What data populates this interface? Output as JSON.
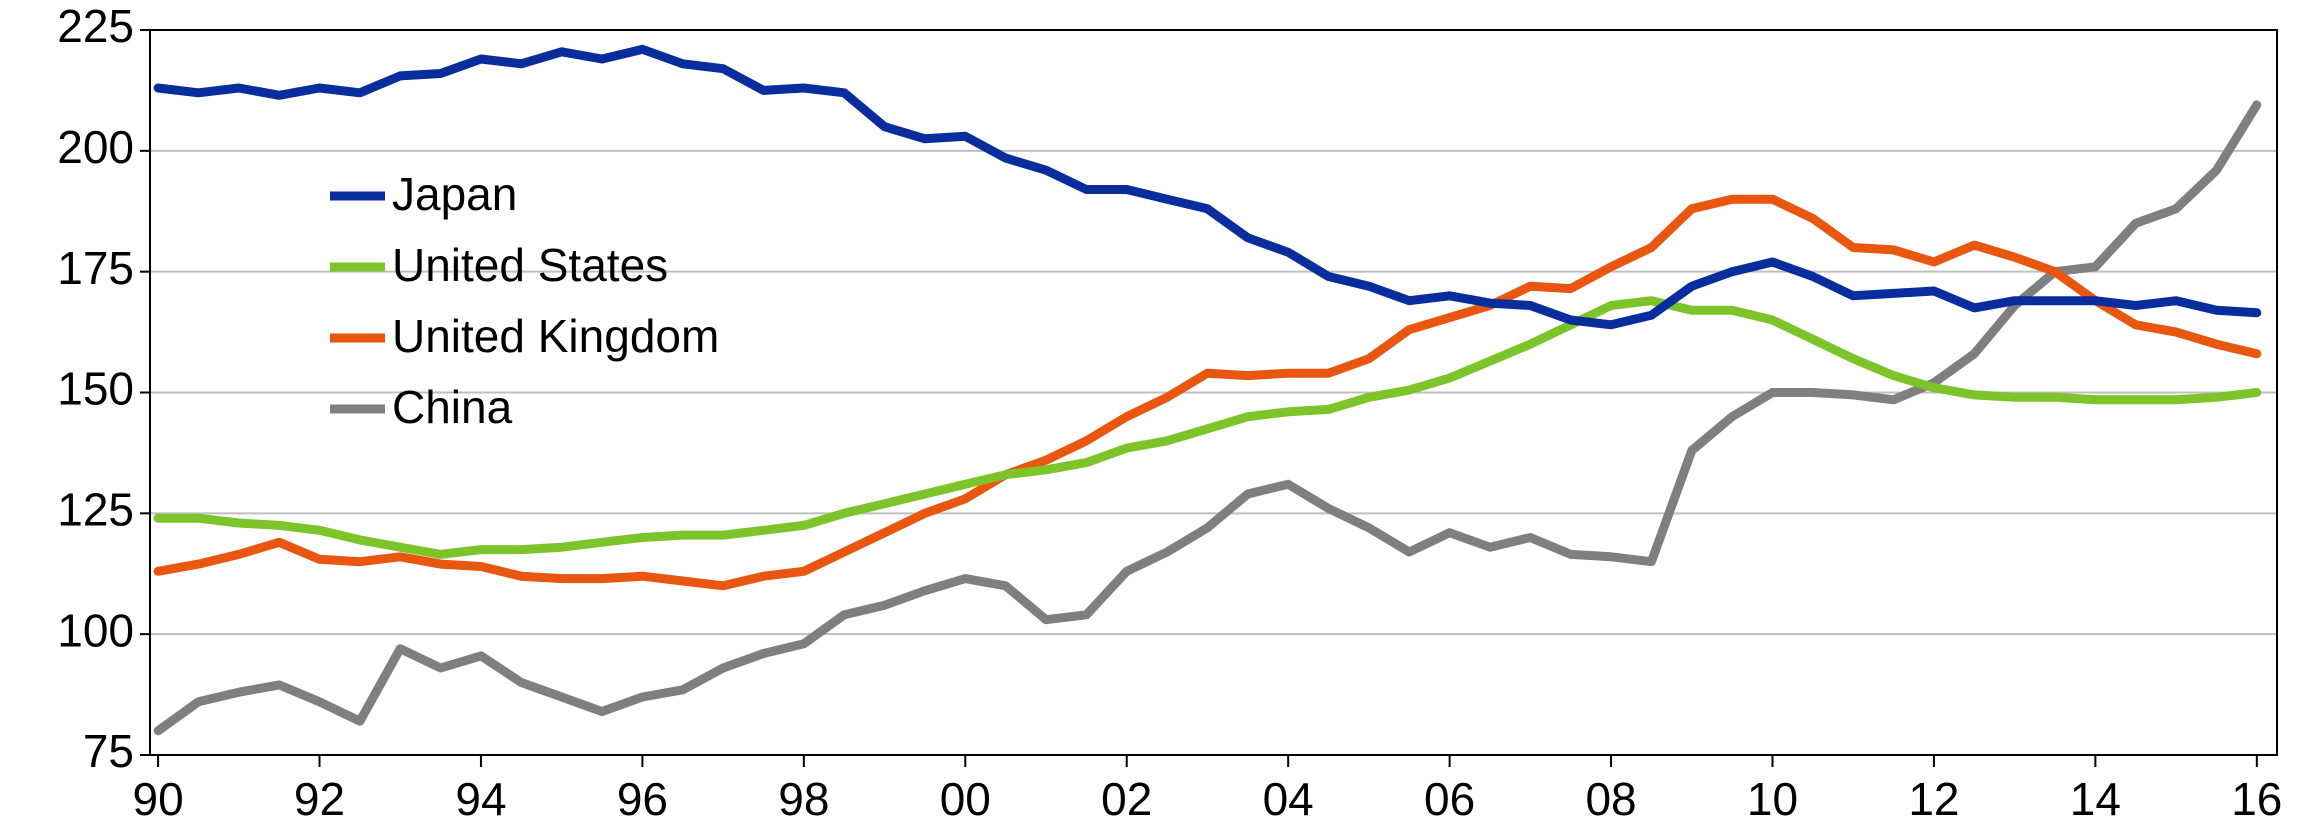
{
  "chart_data": {
    "type": "line",
    "x": [
      1990,
      1990.5,
      1991,
      1991.5,
      1992,
      1992.5,
      1993,
      1993.5,
      1994,
      1994.5,
      1995,
      1995.5,
      1996,
      1996.5,
      1997,
      1997.5,
      1998,
      1998.5,
      1999,
      1999.5,
      2000,
      2000.5,
      2001,
      2001.5,
      2002,
      2002.5,
      2003,
      2003.5,
      2004,
      2004.5,
      2005,
      2005.5,
      2006,
      2006.5,
      2007,
      2007.5,
      2008,
      2008.5,
      2009,
      2009.5,
      2010,
      2010.5,
      2011,
      2011.5,
      2012,
      2012.5,
      2013,
      2013.5,
      2014,
      2014.5,
      2015,
      2015.5,
      2016
    ],
    "series": [
      {
        "name": "Japan",
        "color": "#0a2d9e",
        "values": [
          213,
          212,
          213,
          211.5,
          213,
          212,
          215.5,
          216,
          219,
          218,
          220.5,
          219,
          221,
          218,
          217,
          212.5,
          213,
          212,
          205,
          202.5,
          203,
          198.5,
          196,
          192,
          192,
          190,
          188,
          182,
          179,
          174,
          172,
          169,
          170,
          168.5,
          168,
          165,
          164,
          166,
          172,
          175,
          177,
          174,
          170,
          170.5,
          171,
          167.5,
          169,
          169,
          169,
          168,
          169,
          167,
          166.5
        ]
      },
      {
        "name": "United States",
        "color": "#7dc42a",
        "values": [
          124,
          124,
          123,
          122.5,
          121.5,
          119.5,
          118,
          116.5,
          117.5,
          117.5,
          118,
          119,
          120,
          120.5,
          120.5,
          121.5,
          122.5,
          125,
          127,
          129,
          131,
          133,
          134,
          135.5,
          138.5,
          140,
          142.5,
          145,
          146,
          146.5,
          149,
          150.5,
          153,
          156.5,
          160,
          164,
          168,
          169,
          167,
          167,
          165,
          161,
          157,
          153.5,
          151,
          149.5,
          149,
          149,
          148.5,
          148.5,
          148.5,
          149,
          150
        ]
      },
      {
        "name": "United Kingdom",
        "color": "#e8560f",
        "values": [
          113,
          114.5,
          116.5,
          119,
          115.5,
          115,
          116,
          114.5,
          114,
          112,
          111.5,
          111.5,
          112,
          111,
          110,
          112,
          113,
          117,
          121,
          125,
          128,
          133,
          136,
          140,
          145,
          149,
          154,
          153.5,
          154,
          154,
          157,
          163,
          165.5,
          168,
          172,
          171.5,
          176,
          180,
          188,
          190,
          190,
          186,
          180,
          179.5,
          177,
          180.5,
          178,
          175,
          169,
          164,
          162.5,
          160,
          158
        ]
      },
      {
        "name": "China",
        "color": "#7f7f7f",
        "values": [
          80,
          86,
          88,
          89.5,
          86,
          82,
          97,
          93,
          95.5,
          90,
          87,
          84,
          87,
          88.5,
          93,
          96,
          98,
          104,
          106,
          109,
          111.5,
          110,
          103,
          104,
          113,
          117,
          122,
          129,
          131,
          126,
          122,
          117,
          121,
          118,
          120,
          116.5,
          116,
          115,
          138,
          145,
          150,
          150,
          149.5,
          148.5,
          152,
          158,
          168,
          175,
          176,
          185,
          188,
          196,
          209.5
        ]
      }
    ],
    "xlim": [
      1989.9,
      2016.25
    ],
    "xticks": [
      {
        "value": 1990,
        "label": "90"
      },
      {
        "value": 1992,
        "label": "92"
      },
      {
        "value": 1994,
        "label": "94"
      },
      {
        "value": 1996,
        "label": "96"
      },
      {
        "value": 1998,
        "label": "98"
      },
      {
        "value": 2000,
        "label": "00"
      },
      {
        "value": 2002,
        "label": "02"
      },
      {
        "value": 2004,
        "label": "04"
      },
      {
        "value": 2006,
        "label": "06"
      },
      {
        "value": 2008,
        "label": "08"
      },
      {
        "value": 2010,
        "label": "10"
      },
      {
        "value": 2012,
        "label": "12"
      },
      {
        "value": 2014,
        "label": "14"
      },
      {
        "value": 2016,
        "label": "16"
      }
    ],
    "ylim": [
      75,
      225
    ],
    "yticks": [
      75,
      100,
      125,
      150,
      175,
      200,
      225
    ],
    "grid": true,
    "legend": "upper left"
  }
}
